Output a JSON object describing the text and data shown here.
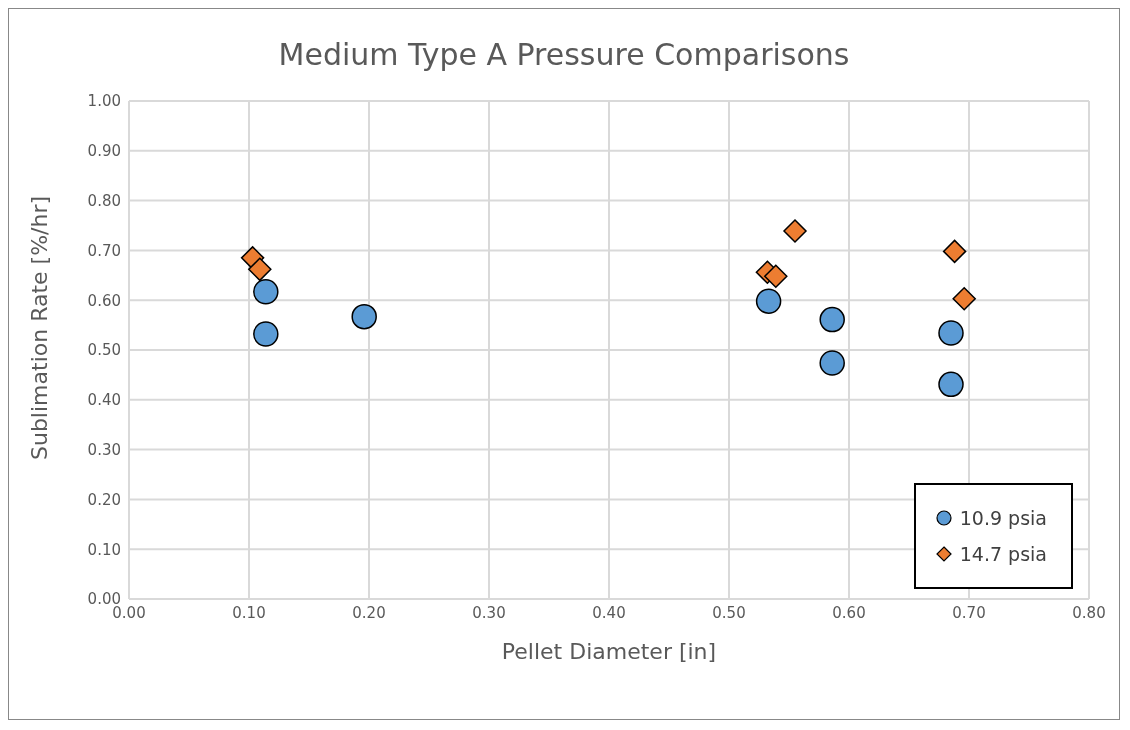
{
  "chart_data": {
    "type": "scatter",
    "title": "Medium Type A Pressure Comparisons",
    "xlabel": "Pellet Diameter [in]",
    "ylabel": "Sublimation Rate [%/hr]",
    "xlim": [
      0,
      0.8
    ],
    "xticks": [
      {
        "value": 0,
        "label": "0.00"
      },
      {
        "value": 0.1,
        "label": "0.10"
      },
      {
        "value": 0.2,
        "label": "0.20"
      },
      {
        "value": 0.3,
        "label": "0.30"
      },
      {
        "value": 0.4,
        "label": "0.40"
      },
      {
        "value": 0.5,
        "label": "0.50"
      },
      {
        "value": 0.6,
        "label": "0.60"
      },
      {
        "value": 0.7,
        "label": "0.70"
      },
      {
        "value": 0.8,
        "label": "0.80"
      }
    ],
    "ylim": [
      0,
      1
    ],
    "yticks": [
      {
        "value": 0,
        "label": "0.00"
      },
      {
        "value": 0.1,
        "label": "0.10"
      },
      {
        "value": 0.2,
        "label": "0.20"
      },
      {
        "value": 0.3,
        "label": "0.30"
      },
      {
        "value": 0.4,
        "label": "0.40"
      },
      {
        "value": 0.5,
        "label": "0.50"
      },
      {
        "value": 0.6,
        "label": "0.60"
      },
      {
        "value": 0.7,
        "label": "0.70"
      },
      {
        "value": 0.8,
        "label": "0.80"
      },
      {
        "value": 0.9,
        "label": "0.90"
      },
      {
        "value": 1,
        "label": "1.00"
      }
    ],
    "grid": true,
    "legend": "bottom right",
    "series": [
      {
        "name": "10.9 psia",
        "color": "#5b9bd5",
        "marker": "circle",
        "x": [
          0.114,
          0.114,
          0.196,
          0.533,
          0.586,
          0.586,
          0.685,
          0.685
        ],
        "values": [
          0.617,
          0.532,
          0.567,
          0.598,
          0.561,
          0.474,
          0.534,
          0.431
        ]
      },
      {
        "name": "14.7 psia",
        "color": "#ed7d31",
        "marker": "diamond",
        "x": [
          0.103,
          0.109,
          0.532,
          0.539,
          0.555,
          0.688,
          0.696
        ],
        "values": [
          0.685,
          0.662,
          0.656,
          0.648,
          0.739,
          0.698,
          0.603
        ]
      }
    ]
  }
}
